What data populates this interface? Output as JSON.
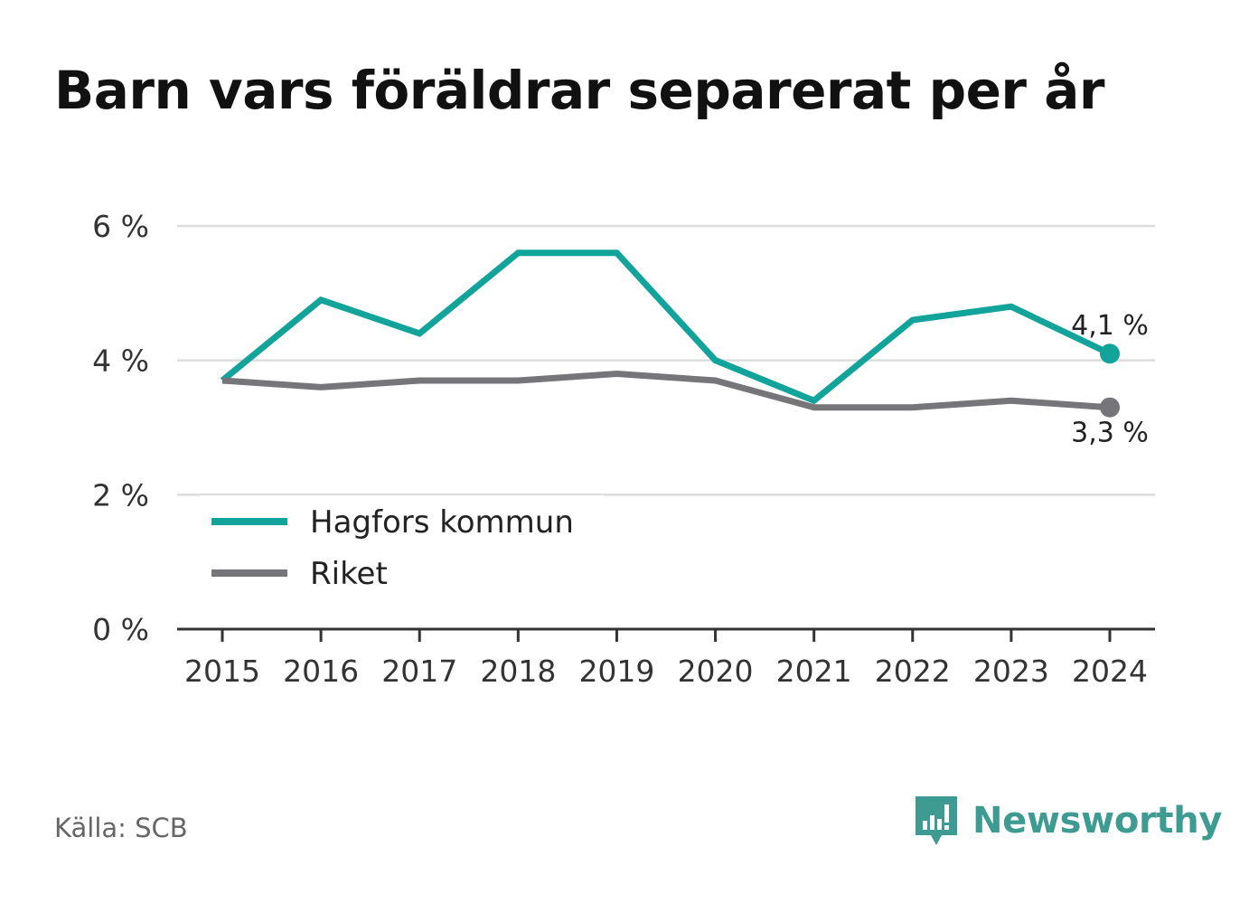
{
  "title": "Barn vars föräldrar separerat per år",
  "source": "Källa: SCB",
  "brand": {
    "name": "Newsworthy",
    "icon": "bar-chart-speech-bubble-icon",
    "color": "#3d9b92"
  },
  "chart_data": {
    "type": "line",
    "title": "Barn vars föräldrar separerat per år",
    "x": [
      "2015",
      "2016",
      "2017",
      "2018",
      "2019",
      "2020",
      "2021",
      "2022",
      "2023",
      "2024"
    ],
    "series": [
      {
        "name": "Hagfors kommun",
        "color": "#12a39a",
        "values": [
          3.7,
          4.9,
          4.4,
          5.6,
          5.6,
          4.0,
          3.4,
          4.6,
          4.8,
          4.1
        ],
        "end_label": "4,1 %"
      },
      {
        "name": "Riket",
        "color": "#767579",
        "values": [
          3.7,
          3.6,
          3.7,
          3.7,
          3.8,
          3.7,
          3.3,
          3.3,
          3.4,
          3.3
        ],
        "end_label": "3,3 %"
      }
    ],
    "y_ticks": [
      {
        "value": 0,
        "label": "0 %"
      },
      {
        "value": 2,
        "label": "2 %"
      },
      {
        "value": 4,
        "label": "4 %"
      },
      {
        "value": 6,
        "label": "6 %"
      }
    ],
    "ylim": [
      0,
      6
    ],
    "grid": true,
    "legend_position": "bottom-left"
  }
}
